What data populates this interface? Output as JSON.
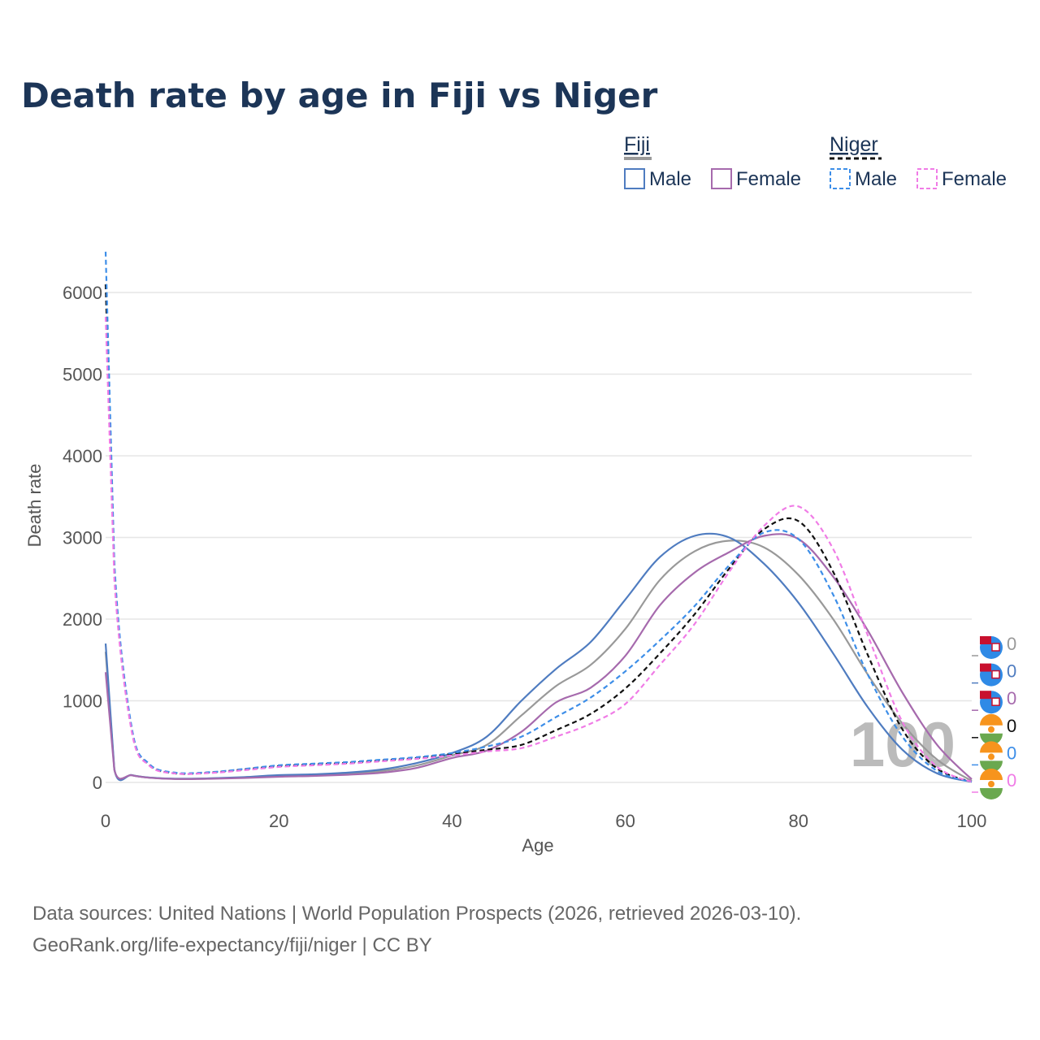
{
  "colors": {
    "fiji_total": "#999999",
    "fiji_male": "#4f7cc0",
    "fiji_female": "#a66aad",
    "niger_total": "#111111",
    "niger_male": "#3d8ee8",
    "niger_female": "#f07ce6",
    "grid": "#e6e6e6",
    "title": "#1c3557"
  },
  "chart_data": {
    "type": "line",
    "title": "Death rate by age in Fiji vs Niger",
    "xlabel": "Age",
    "ylabel": "Death rate",
    "xlim": [
      0,
      100
    ],
    "ylim": [
      0,
      6000
    ],
    "x_ticks": [
      "0",
      "20",
      "40",
      "60",
      "80",
      "100"
    ],
    "y_ticks": [
      "0",
      "1000",
      "2000",
      "3000",
      "4000",
      "5000",
      "6000"
    ],
    "current_age": "100",
    "legend": {
      "groups": [
        {
          "name": "Fiji",
          "items": [
            "Male",
            "Female"
          ]
        },
        {
          "name": "Niger",
          "items": [
            "Male",
            "Female"
          ]
        }
      ]
    },
    "series": [
      {
        "name": "Fiji total",
        "country": "Fiji",
        "sex": "Total",
        "style": "solid",
        "color_key": "fiji_total",
        "end_value": "0",
        "x": [
          0,
          1,
          3,
          5,
          8,
          12,
          16,
          20,
          24,
          28,
          32,
          36,
          40,
          44,
          48,
          52,
          56,
          60,
          64,
          68,
          72,
          76,
          80,
          84,
          88,
          92,
          96,
          100
        ],
        "values": [
          1600,
          160,
          90,
          60,
          45,
          50,
          60,
          80,
          90,
          110,
          140,
          210,
          330,
          460,
          820,
          1180,
          1440,
          1880,
          2480,
          2830,
          2960,
          2880,
          2540,
          2000,
          1320,
          720,
          280,
          20
        ]
      },
      {
        "name": "Fiji male",
        "country": "Fiji",
        "sex": "Male",
        "style": "solid",
        "color_key": "fiji_male",
        "end_value": "0",
        "x": [
          0,
          1,
          3,
          5,
          8,
          12,
          16,
          20,
          24,
          28,
          32,
          36,
          40,
          44,
          48,
          52,
          56,
          60,
          64,
          68,
          72,
          76,
          80,
          84,
          88,
          92,
          96,
          100
        ],
        "values": [
          1700,
          165,
          90,
          60,
          45,
          50,
          65,
          90,
          100,
          120,
          160,
          240,
          360,
          560,
          1000,
          1390,
          1720,
          2240,
          2760,
          3020,
          3000,
          2680,
          2200,
          1580,
          920,
          400,
          110,
          10
        ]
      },
      {
        "name": "Fiji female",
        "country": "Fiji",
        "sex": "Female",
        "style": "solid",
        "color_key": "fiji_female",
        "end_value": "0",
        "x": [
          0,
          1,
          3,
          5,
          8,
          12,
          16,
          20,
          24,
          28,
          32,
          36,
          40,
          44,
          48,
          52,
          56,
          60,
          64,
          68,
          72,
          76,
          80,
          84,
          88,
          92,
          96,
          100
        ],
        "values": [
          1350,
          155,
          88,
          58,
          42,
          45,
          55,
          70,
          80,
          95,
          120,
          180,
          300,
          390,
          620,
          980,
          1160,
          1550,
          2170,
          2570,
          2820,
          3020,
          2980,
          2520,
          1860,
          1100,
          460,
          40
        ]
      },
      {
        "name": "Niger total",
        "country": "Niger",
        "sex": "Total",
        "style": "dashed",
        "color_key": "niger_total",
        "end_value": "0",
        "x": [
          0,
          1,
          3,
          5,
          8,
          12,
          16,
          20,
          24,
          28,
          32,
          36,
          40,
          44,
          48,
          52,
          56,
          60,
          64,
          68,
          72,
          76,
          80,
          84,
          88,
          92,
          96,
          100
        ],
        "values": [
          6100,
          2600,
          650,
          220,
          110,
          120,
          160,
          200,
          220,
          240,
          270,
          300,
          350,
          400,
          460,
          640,
          840,
          1150,
          1580,
          2060,
          2620,
          3100,
          3200,
          2580,
          1560,
          650,
          170,
          10
        ]
      },
      {
        "name": "Niger male",
        "country": "Niger",
        "sex": "Male",
        "style": "dashed",
        "color_key": "niger_male",
        "end_value": "0",
        "x": [
          0,
          1,
          3,
          5,
          8,
          12,
          16,
          20,
          24,
          28,
          32,
          36,
          40,
          44,
          48,
          52,
          56,
          60,
          64,
          68,
          72,
          76,
          80,
          84,
          88,
          92,
          96,
          100
        ],
        "values": [
          6500,
          2700,
          680,
          230,
          120,
          125,
          165,
          210,
          230,
          250,
          280,
          310,
          360,
          440,
          560,
          800,
          1040,
          1360,
          1740,
          2160,
          2660,
          3060,
          2980,
          2300,
          1320,
          560,
          140,
          10
        ]
      },
      {
        "name": "Niger female",
        "country": "Niger",
        "sex": "Female",
        "style": "dashed",
        "color_key": "niger_female",
        "end_value": "0",
        "x": [
          0,
          1,
          3,
          5,
          8,
          12,
          16,
          20,
          24,
          28,
          32,
          36,
          40,
          44,
          48,
          52,
          56,
          60,
          64,
          68,
          72,
          76,
          80,
          84,
          88,
          92,
          96,
          100
        ],
        "values": [
          5700,
          2500,
          630,
          210,
          110,
          115,
          150,
          190,
          210,
          230,
          260,
          290,
          330,
          380,
          420,
          560,
          720,
          960,
          1440,
          1940,
          2580,
          3140,
          3380,
          2860,
          1800,
          740,
          190,
          10
        ]
      }
    ]
  },
  "source": {
    "line1": "Data sources: United Nations | World Population Prospects (2026, retrieved 2026-03-10).",
    "line2": "GeoRank.org/life-expectancy/fiji/niger | CC BY"
  }
}
